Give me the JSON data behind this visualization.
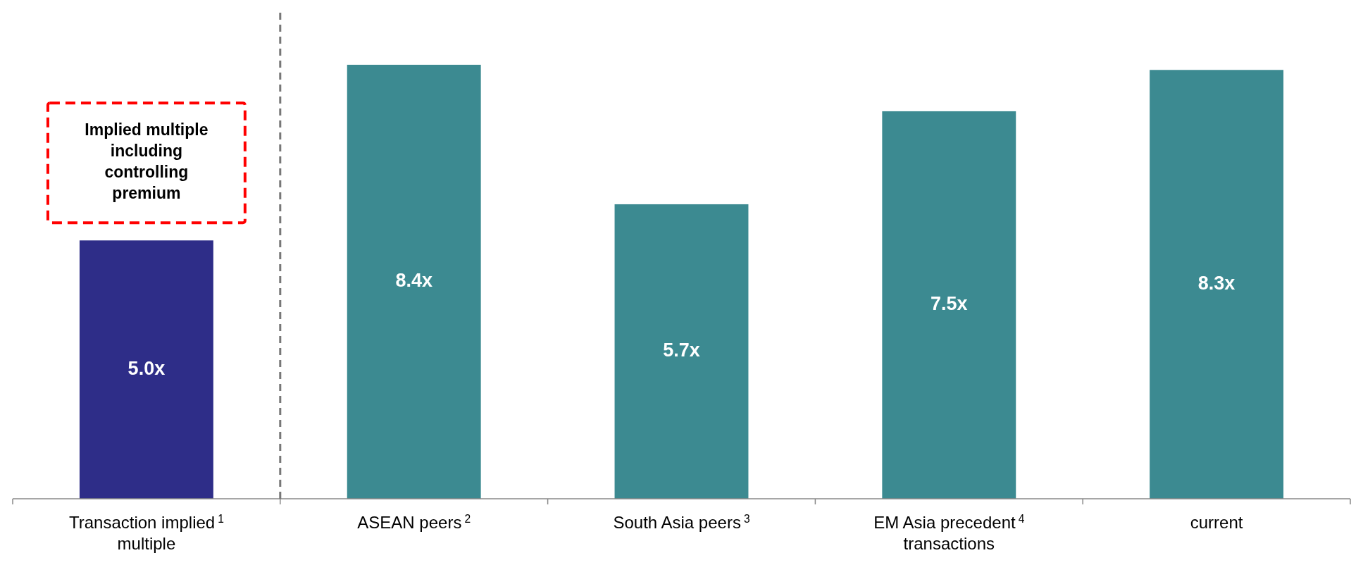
{
  "chart_data": {
    "type": "bar",
    "categories": [
      "Transaction implied$^{1}$ multiple",
      "ASEAN peers$^{2}$",
      "South Asia peers$^{3}$",
      "EM Asia precedent$^{4}$ transactions",
      "current"
    ],
    "values": [
      5.0,
      8.4,
      5.7,
      7.5,
      8.3
    ],
    "colors": [
      "#2e2d88",
      "#3c8a91",
      "#3c8a91",
      "#3c8a91",
      "#3c8a91"
    ],
    "value_labels": [
      "5.0x",
      "8.4x",
      "5.7x",
      "7.5x",
      "8.3x"
    ],
    "annotations": [
      "Implied multiple including controlling premium"
    ]
  }
}
